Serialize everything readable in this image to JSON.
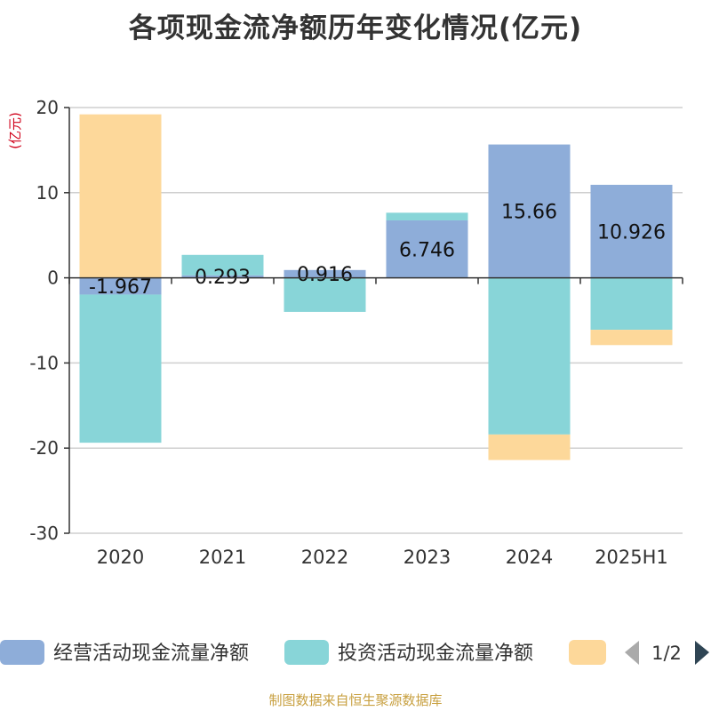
{
  "chart_data": {
    "type": "bar",
    "stacked": true,
    "title": "各项现金流净额历年变化情况(亿元)",
    "unit_label": "(亿元)",
    "categories": [
      "2020",
      "2021",
      "2022",
      "2023",
      "2024",
      "2025H1"
    ],
    "series": [
      {
        "name": "经营活动现金流量净额",
        "color": "#8eadd9",
        "values": [
          -1.967,
          0.293,
          0.916,
          6.746,
          15.66,
          10.926
        ],
        "labels": [
          "-1.967",
          "0.293",
          "0.916",
          "6.746",
          "15.66",
          "10.926"
        ]
      },
      {
        "name": "投资活动现金流量净额",
        "color": "#88d5d8",
        "values": [
          -17.4,
          2.4,
          -4.0,
          0.9,
          -18.4,
          -6.1
        ]
      },
      {
        "name": "",
        "color": "#fdd89a",
        "values": [
          19.2,
          0.0,
          0.0,
          0.0,
          -3.0,
          -1.8
        ]
      }
    ],
    "yaxis": {
      "min": -30,
      "max": 20,
      "ticks": [
        20,
        10,
        0,
        -10,
        -20,
        -30
      ]
    },
    "grid": true,
    "legend_position": "bottom"
  },
  "legend": {
    "page": "1/2"
  },
  "source": "制图数据来自恒生聚源数据库"
}
